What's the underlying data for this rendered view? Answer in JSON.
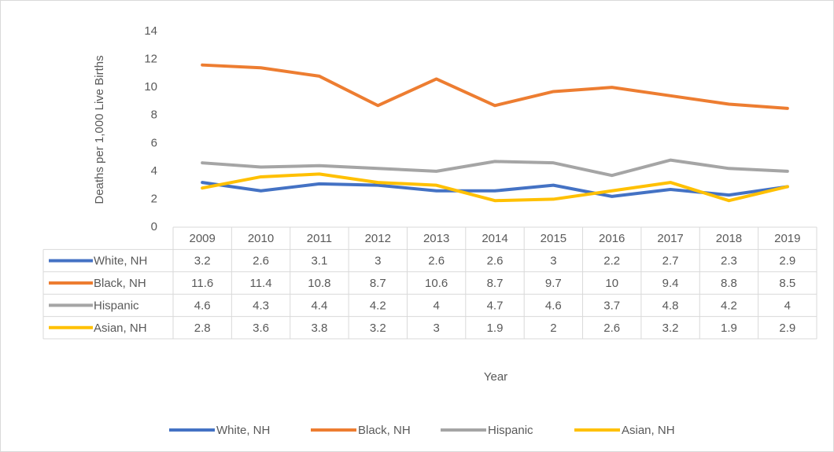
{
  "chart_data": {
    "type": "line",
    "y_label": "Deaths per 1,000 Live Births",
    "x_label": "Year",
    "categories": [
      "2009",
      "2010",
      "2011",
      "2012",
      "2013",
      "2014",
      "2015",
      "2016",
      "2017",
      "2018",
      "2019"
    ],
    "series": [
      {
        "name": "White, NH",
        "color": "#4472c4",
        "values": [
          3.2,
          2.6,
          3.1,
          3,
          2.6,
          2.6,
          3,
          2.2,
          2.7,
          2.3,
          2.9
        ]
      },
      {
        "name": "Black, NH",
        "color": "#ed7d31",
        "values": [
          11.6,
          11.4,
          10.8,
          8.7,
          10.6,
          8.7,
          9.7,
          10,
          9.4,
          8.8,
          8.5
        ]
      },
      {
        "name": "Hispanic",
        "color": "#a5a5a5",
        "values": [
          4.6,
          4.3,
          4.4,
          4.2,
          4,
          4.7,
          4.6,
          3.7,
          4.8,
          4.2,
          4
        ]
      },
      {
        "name": "Asian, NH",
        "color": "#ffc000",
        "values": [
          2.8,
          3.6,
          3.8,
          3.2,
          3,
          1.9,
          2,
          2.6,
          3.2,
          1.9,
          2.9
        ]
      }
    ],
    "ylim": [
      0,
      14
    ],
    "yticks": [
      0,
      2,
      4,
      6,
      8,
      10,
      12,
      14
    ],
    "grid": false,
    "legend": "bottom"
  }
}
